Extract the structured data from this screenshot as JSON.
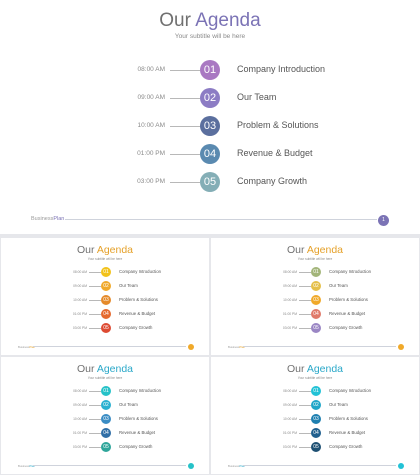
{
  "agenda": {
    "title_main": "Our ",
    "title_accent": "Agenda",
    "subtitle": "Your subtitle will be here",
    "items": [
      {
        "time": "08:00 AM",
        "number": "01",
        "label": "Company Introduction"
      },
      {
        "time": "09:00 AM",
        "number": "02",
        "label": "Our Team"
      },
      {
        "time": "10:00 AM",
        "number": "03",
        "label": "Problem & Solutions"
      },
      {
        "time": "01:00 PM",
        "number": "04",
        "label": "Revenue & Budget"
      },
      {
        "time": "03:00 PM",
        "number": "05",
        "label": "Company Growth"
      }
    ],
    "footer_brand_main": "Business",
    "footer_brand_accent": "Plan",
    "page_number": "1"
  },
  "themes": {
    "purple": {
      "accent": "#7b73b5",
      "circles": [
        "#a978c2",
        "#8c7cc4",
        "#5b6f9e",
        "#5a8ab0",
        "#84aeb6"
      ],
      "dot": "#7b73b5"
    },
    "warm": {
      "accent": "#e5a12a",
      "circles": [
        "#f2c21a",
        "#f0a92a",
        "#e58a2a",
        "#e5692e",
        "#dd4a32"
      ],
      "dot": "#f0a92a"
    },
    "mixed": {
      "accent": "#e5a12a",
      "circles": [
        "#a3b57a",
        "#e5c04a",
        "#f0a92a",
        "#e07a6a",
        "#9a86c4"
      ],
      "dot": "#f0a92a"
    },
    "teal": {
      "accent": "#2aa8c9",
      "circles": [
        "#26c2c8",
        "#2ab0d0",
        "#3a8cc4",
        "#2f6ea6",
        "#2ea59a"
      ],
      "dot": "#26c2c8"
    },
    "ocean": {
      "accent": "#2aa8c9",
      "circles": [
        "#22c2d6",
        "#1fa6c8",
        "#1e7fb0",
        "#1f5f8e",
        "#1d4f72"
      ],
      "dot": "#22c2d6"
    }
  }
}
